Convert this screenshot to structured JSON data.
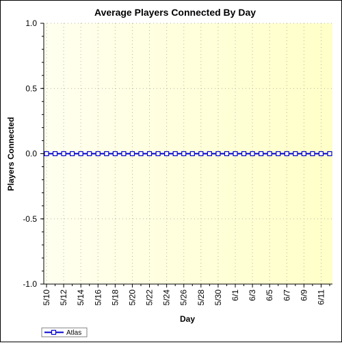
{
  "chart_data": {
    "type": "line",
    "title": "Average Players Connected By Day",
    "xlabel": "Day",
    "ylabel": "Players Connected",
    "ylim": [
      -1.0,
      1.0
    ],
    "yticks": [
      "-1.0",
      "-0.5",
      "0.0",
      "0.5",
      "1.0"
    ],
    "x": [
      "5/10",
      "5/11",
      "5/12",
      "5/13",
      "5/14",
      "5/15",
      "5/16",
      "5/17",
      "5/18",
      "5/19",
      "5/20",
      "5/21",
      "5/22",
      "5/23",
      "5/24",
      "5/25",
      "5/26",
      "5/27",
      "5/28",
      "5/29",
      "5/30",
      "5/31",
      "6/1",
      "6/2",
      "6/3",
      "6/4",
      "6/5",
      "6/6",
      "6/7",
      "6/8",
      "6/9",
      "6/10",
      "6/11",
      "6/12"
    ],
    "xtick_labels": [
      "5/10",
      "5/12",
      "5/14",
      "5/16",
      "5/18",
      "5/20",
      "5/22",
      "5/24",
      "5/26",
      "5/28",
      "5/30",
      "6/1",
      "6/3",
      "6/5",
      "6/7",
      "6/9",
      "6/11"
    ],
    "grid": true,
    "legend_position": "bottom-left",
    "series": [
      {
        "name": "Atlas",
        "color": "#0000cc",
        "marker": "square",
        "values": [
          0,
          0,
          0,
          0,
          0,
          0,
          0,
          0,
          0,
          0,
          0,
          0,
          0,
          0,
          0,
          0,
          0,
          0,
          0,
          0,
          0,
          0,
          0,
          0,
          0,
          0,
          0,
          0,
          0,
          0,
          0,
          0,
          0,
          0
        ]
      }
    ]
  },
  "colors": {
    "plot_bg_start": "#fffff0",
    "plot_bg_end": "#ffffc8",
    "grid": "#b4b4a0",
    "series": "#0000cc"
  }
}
